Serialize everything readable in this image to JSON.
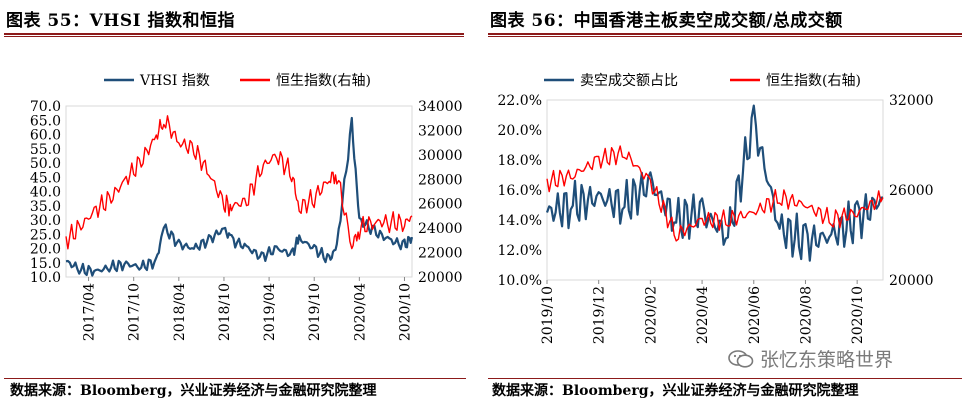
{
  "left": {
    "title": "图表 55：VHSI 指数和恒指",
    "source": "数据来源：Bloomberg，兴业证券经济与金融研究院整理",
    "chart_data": {
      "type": "line",
      "title": "",
      "legend": [
        "VHSI 指数",
        "恒生指数(右轴)"
      ],
      "legend_position": "top",
      "colors": {
        "VHSI 指数": "#1f4e79",
        "恒生指数(右轴)": "#ff0000"
      },
      "x_tick_labels": [
        "2017/04",
        "2017/10",
        "2018/04",
        "2018/10",
        "2019/04",
        "2019/10",
        "2020/04",
        "2020/10"
      ],
      "y_left": {
        "ticks": [
          "10.0",
          "15.0",
          "20.0",
          "25.0",
          "30.0",
          "35.0",
          "40.0",
          "45.0",
          "50.0",
          "55.0",
          "60.0",
          "65.0",
          "70.0"
        ],
        "range": [
          10,
          70
        ]
      },
      "y_right": {
        "ticks": [
          "20000",
          "22000",
          "24000",
          "26000",
          "28000",
          "30000",
          "32000",
          "34000"
        ],
        "range": [
          20000,
          34000
        ]
      },
      "series": [
        {
          "name": "VHSI 指数",
          "axis": "left",
          "x": [
            "2017/01",
            "2017/03",
            "2017/05",
            "2017/07",
            "2017/09",
            "2017/11",
            "2018/01",
            "2018/02",
            "2018/04",
            "2018/06",
            "2018/08",
            "2018/10",
            "2018/11",
            "2019/01",
            "2019/03",
            "2019/05",
            "2019/07",
            "2019/08",
            "2019/10",
            "2019/12",
            "2020/01",
            "2020/03",
            "2020/04",
            "2020/06",
            "2020/08",
            "2020/10",
            "2020/11"
          ],
          "values": [
            15.5,
            12.5,
            12.0,
            13.5,
            14.5,
            13.5,
            15.5,
            27.5,
            21.5,
            20.0,
            23.0,
            27.0,
            23.0,
            20.5,
            17.0,
            20.0,
            18.0,
            23.5,
            20.0,
            16.0,
            20.5,
            64.0,
            30.0,
            26.0,
            23.0,
            21.0,
            24.0
          ]
        },
        {
          "name": "恒生指数(右轴)",
          "axis": "right",
          "x": [
            "2017/01",
            "2017/03",
            "2017/05",
            "2017/07",
            "2017/09",
            "2017/11",
            "2018/01",
            "2018/02",
            "2018/04",
            "2018/06",
            "2018/08",
            "2018/10",
            "2018/11",
            "2019/01",
            "2019/03",
            "2019/05",
            "2019/07",
            "2019/08",
            "2019/10",
            "2019/12",
            "2020/01",
            "2020/03",
            "2020/04",
            "2020/06",
            "2020/08",
            "2020/10",
            "2020/11"
          ],
          "values": [
            23000,
            24200,
            25500,
            26500,
            28000,
            29500,
            31500,
            33000,
            31000,
            30500,
            28500,
            26000,
            25800,
            26200,
            29000,
            30000,
            28500,
            25600,
            26500,
            28000,
            28500,
            22500,
            24000,
            24500,
            24500,
            24400,
            25000
          ]
        }
      ]
    }
  },
  "right": {
    "title": "图表 56：中国香港主板卖空成交额/总成交额",
    "source": "数据来源：Bloomberg，兴业证券经济与金融研究院整理",
    "chart_data": {
      "type": "line",
      "title": "",
      "legend": [
        "卖空成交额占比",
        "恒生指数(右轴)"
      ],
      "legend_position": "top",
      "colors": {
        "卖空成交额占比": "#1f4e79",
        "恒生指数(右轴)": "#ff0000"
      },
      "x_tick_labels": [
        "2019/10",
        "2019/12",
        "2020/02",
        "2020/04",
        "2020/06",
        "2020/08",
        "2020/10"
      ],
      "y_left": {
        "ticks": [
          "10.0%",
          "12.0%",
          "14.0%",
          "16.0%",
          "18.0%",
          "20.0%",
          "22.0%"
        ],
        "range": [
          10,
          22
        ]
      },
      "y_right": {
        "ticks": [
          "20000",
          "26000",
          "32000"
        ],
        "range": [
          20000,
          32000
        ]
      },
      "series": [
        {
          "name": "卖空成交额占比",
          "axis": "left",
          "x": [
            "2019/10",
            "2019/11",
            "2019/12",
            "2020/01",
            "2020/02",
            "2020/03",
            "2020/04",
            "2020/05",
            "2020/06",
            "2020/07",
            "2020/08",
            "2020/09",
            "2020/10",
            "2020/11"
          ],
          "values": [
            14.5,
            15.0,
            15.5,
            15.0,
            16.5,
            14.0,
            14.5,
            13.0,
            20.5,
            13.5,
            12.5,
            13.0,
            14.0,
            15.5
          ]
        },
        {
          "name": "恒生指数(右轴)",
          "axis": "right",
          "x": [
            "2019/10",
            "2019/11",
            "2019/12",
            "2020/01",
            "2020/02",
            "2020/03",
            "2020/04",
            "2020/05",
            "2020/06",
            "2020/07",
            "2020/08",
            "2020/09",
            "2020/10",
            "2020/11"
          ],
          "values": [
            26500,
            27000,
            28000,
            28500,
            26500,
            23000,
            24000,
            24000,
            24500,
            25500,
            25000,
            24000,
            24500,
            25500
          ]
        }
      ]
    }
  },
  "watermark": "张忆东策略世界"
}
